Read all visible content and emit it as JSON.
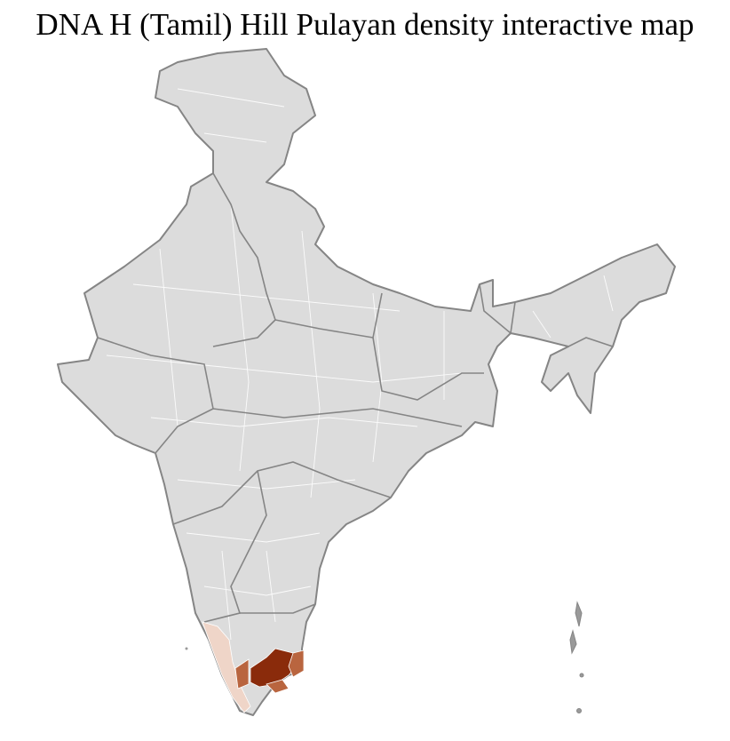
{
  "title": "DNA H (Tamil) Hill Pulayan density interactive map",
  "map": {
    "region": "India",
    "colors": {
      "land": "#dcdcdc",
      "state_border": "#858585",
      "district_border": "#ffffff",
      "density_low": "#efd5c8",
      "density_mid": "#b9653f",
      "density_high": "#8a2b0b"
    },
    "highlighted_regions": [
      {
        "area": "Kerala districts",
        "level": "low"
      },
      {
        "area": "Tamil Nadu western districts",
        "level": "mid"
      },
      {
        "area": "Tamil Nadu central districts",
        "level": "high"
      },
      {
        "area": "Tamil Nadu eastern coastal districts",
        "level": "mid"
      }
    ]
  }
}
